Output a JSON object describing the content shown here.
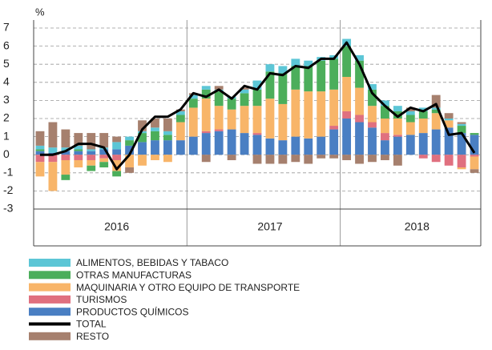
{
  "chart_data": {
    "type": "bar",
    "stacked": true,
    "y_unit": "%",
    "categories": [
      null,
      null,
      null,
      null,
      null,
      null,
      null,
      null,
      null,
      null,
      null,
      null,
      null,
      null,
      null,
      null,
      null,
      null,
      null,
      null,
      null,
      null,
      null,
      null,
      null,
      null,
      null,
      null,
      null,
      null,
      null,
      null,
      null,
      null,
      null
    ],
    "year_labels": [
      "2016",
      "2017",
      "2018"
    ],
    "ylim": [
      -3,
      7
    ],
    "yticks": [
      -3,
      -2,
      -1,
      0,
      1,
      2,
      3,
      4,
      5,
      6,
      7
    ],
    "grid": true,
    "series": [
      {
        "name": "ALIMENTOS, BEBIDAS Y TABACO",
        "color": "#5cc6d6",
        "values": [
          0.2,
          0.3,
          0.2,
          0.2,
          0.1,
          0.1,
          0.4,
          0.2,
          0.1,
          0.2,
          0.2,
          0.2,
          0.2,
          0.2,
          0.1,
          0.1,
          0.2,
          0.5,
          0.4,
          0.4,
          0.4,
          0.3,
          0.2,
          0.2,
          0.4,
          0.3,
          0.3,
          0.3,
          0.3,
          0.2,
          0.2,
          0.1,
          0.1,
          0.1,
          0.0
        ]
      },
      {
        "name": "OTRAS MANUFACTURAS",
        "color": "#4cae5b",
        "values": [
          0.1,
          0.0,
          -0.3,
          0.1,
          -0.3,
          -0.3,
          -0.3,
          0.3,
          0.5,
          0.5,
          0.3,
          0.4,
          0.5,
          0.5,
          0.8,
          0.6,
          0.7,
          0.9,
          1.5,
          1.7,
          1.3,
          1.4,
          1.7,
          1.7,
          1.7,
          1.5,
          0.9,
          0.7,
          0.4,
          0.4,
          0.4,
          0.2,
          0.0,
          0.4,
          0.1
        ]
      },
      {
        "name": "MAQUINARIA Y OTRO EQUIPO DE TRANSPORTE",
        "color": "#f8b569",
        "values": [
          -0.8,
          -1.6,
          -0.8,
          -0.4,
          -0.3,
          -0.2,
          -0.6,
          -0.7,
          -0.6,
          -0.3,
          -0.4,
          1.0,
          1.6,
          1.8,
          1.3,
          1.1,
          1.5,
          1.5,
          2.2,
          2.0,
          2.6,
          2.6,
          2.5,
          2.0,
          1.9,
          1.5,
          0.9,
          0.8,
          0.9,
          0.7,
          0.8,
          0.9,
          0.4,
          -0.1,
          -0.7
        ]
      },
      {
        "name": "TURISMOS",
        "color": "#e0707f",
        "values": [
          -0.4,
          -0.4,
          -0.3,
          -0.3,
          -0.3,
          -0.2,
          -0.3,
          0.0,
          0.0,
          0.0,
          0.0,
          0.0,
          0.0,
          0.1,
          0.1,
          0.0,
          0.0,
          0.1,
          0.0,
          0.0,
          0.0,
          0.0,
          0.0,
          0.2,
          0.4,
          0.4,
          0.3,
          0.4,
          0.1,
          0.0,
          -0.2,
          -0.4,
          -0.6,
          -0.7,
          -0.1
        ]
      },
      {
        "name": "PRODUCTOS QUÍMICOS",
        "color": "#4a7fc3",
        "values": [
          0.2,
          0.1,
          0.2,
          0.2,
          0.2,
          0.3,
          0.3,
          0.5,
          0.7,
          0.8,
          0.8,
          0.8,
          1.0,
          1.2,
          1.3,
          1.4,
          1.2,
          1.1,
          0.9,
          0.8,
          1.0,
          0.9,
          1.0,
          1.4,
          2.0,
          1.8,
          1.5,
          0.8,
          1.0,
          1.1,
          1.2,
          1.4,
          1.5,
          1.2,
          1.1
        ]
      },
      {
        "name": "TOTAL",
        "type": "line",
        "color": "#000000",
        "values": [
          0.0,
          0.0,
          0.2,
          0.6,
          0.6,
          0.4,
          -0.8,
          0.0,
          1.4,
          2.1,
          2.1,
          2.5,
          3.4,
          3.2,
          3.6,
          3.1,
          3.8,
          3.6,
          4.5,
          4.4,
          4.9,
          4.8,
          5.3,
          5.3,
          6.2,
          5.0,
          3.4,
          2.7,
          2.1,
          2.6,
          2.4,
          2.8,
          1.1,
          1.2,
          0.1
        ]
      },
      {
        "name": "RESTO",
        "color": "#a6806e",
        "values": [
          0.8,
          1.4,
          1.0,
          0.7,
          0.9,
          0.8,
          0.3,
          -0.3,
          0.6,
          0.5,
          0.7,
          0.1,
          0.1,
          -0.4,
          0.2,
          -0.3,
          0.1,
          -0.5,
          -0.5,
          -0.5,
          -0.4,
          -0.5,
          -0.2,
          -0.2,
          -0.3,
          -0.5,
          -0.4,
          -0.3,
          -0.6,
          0.2,
          0.0,
          0.7,
          0.3,
          0.1,
          -0.2
        ]
      }
    ]
  }
}
